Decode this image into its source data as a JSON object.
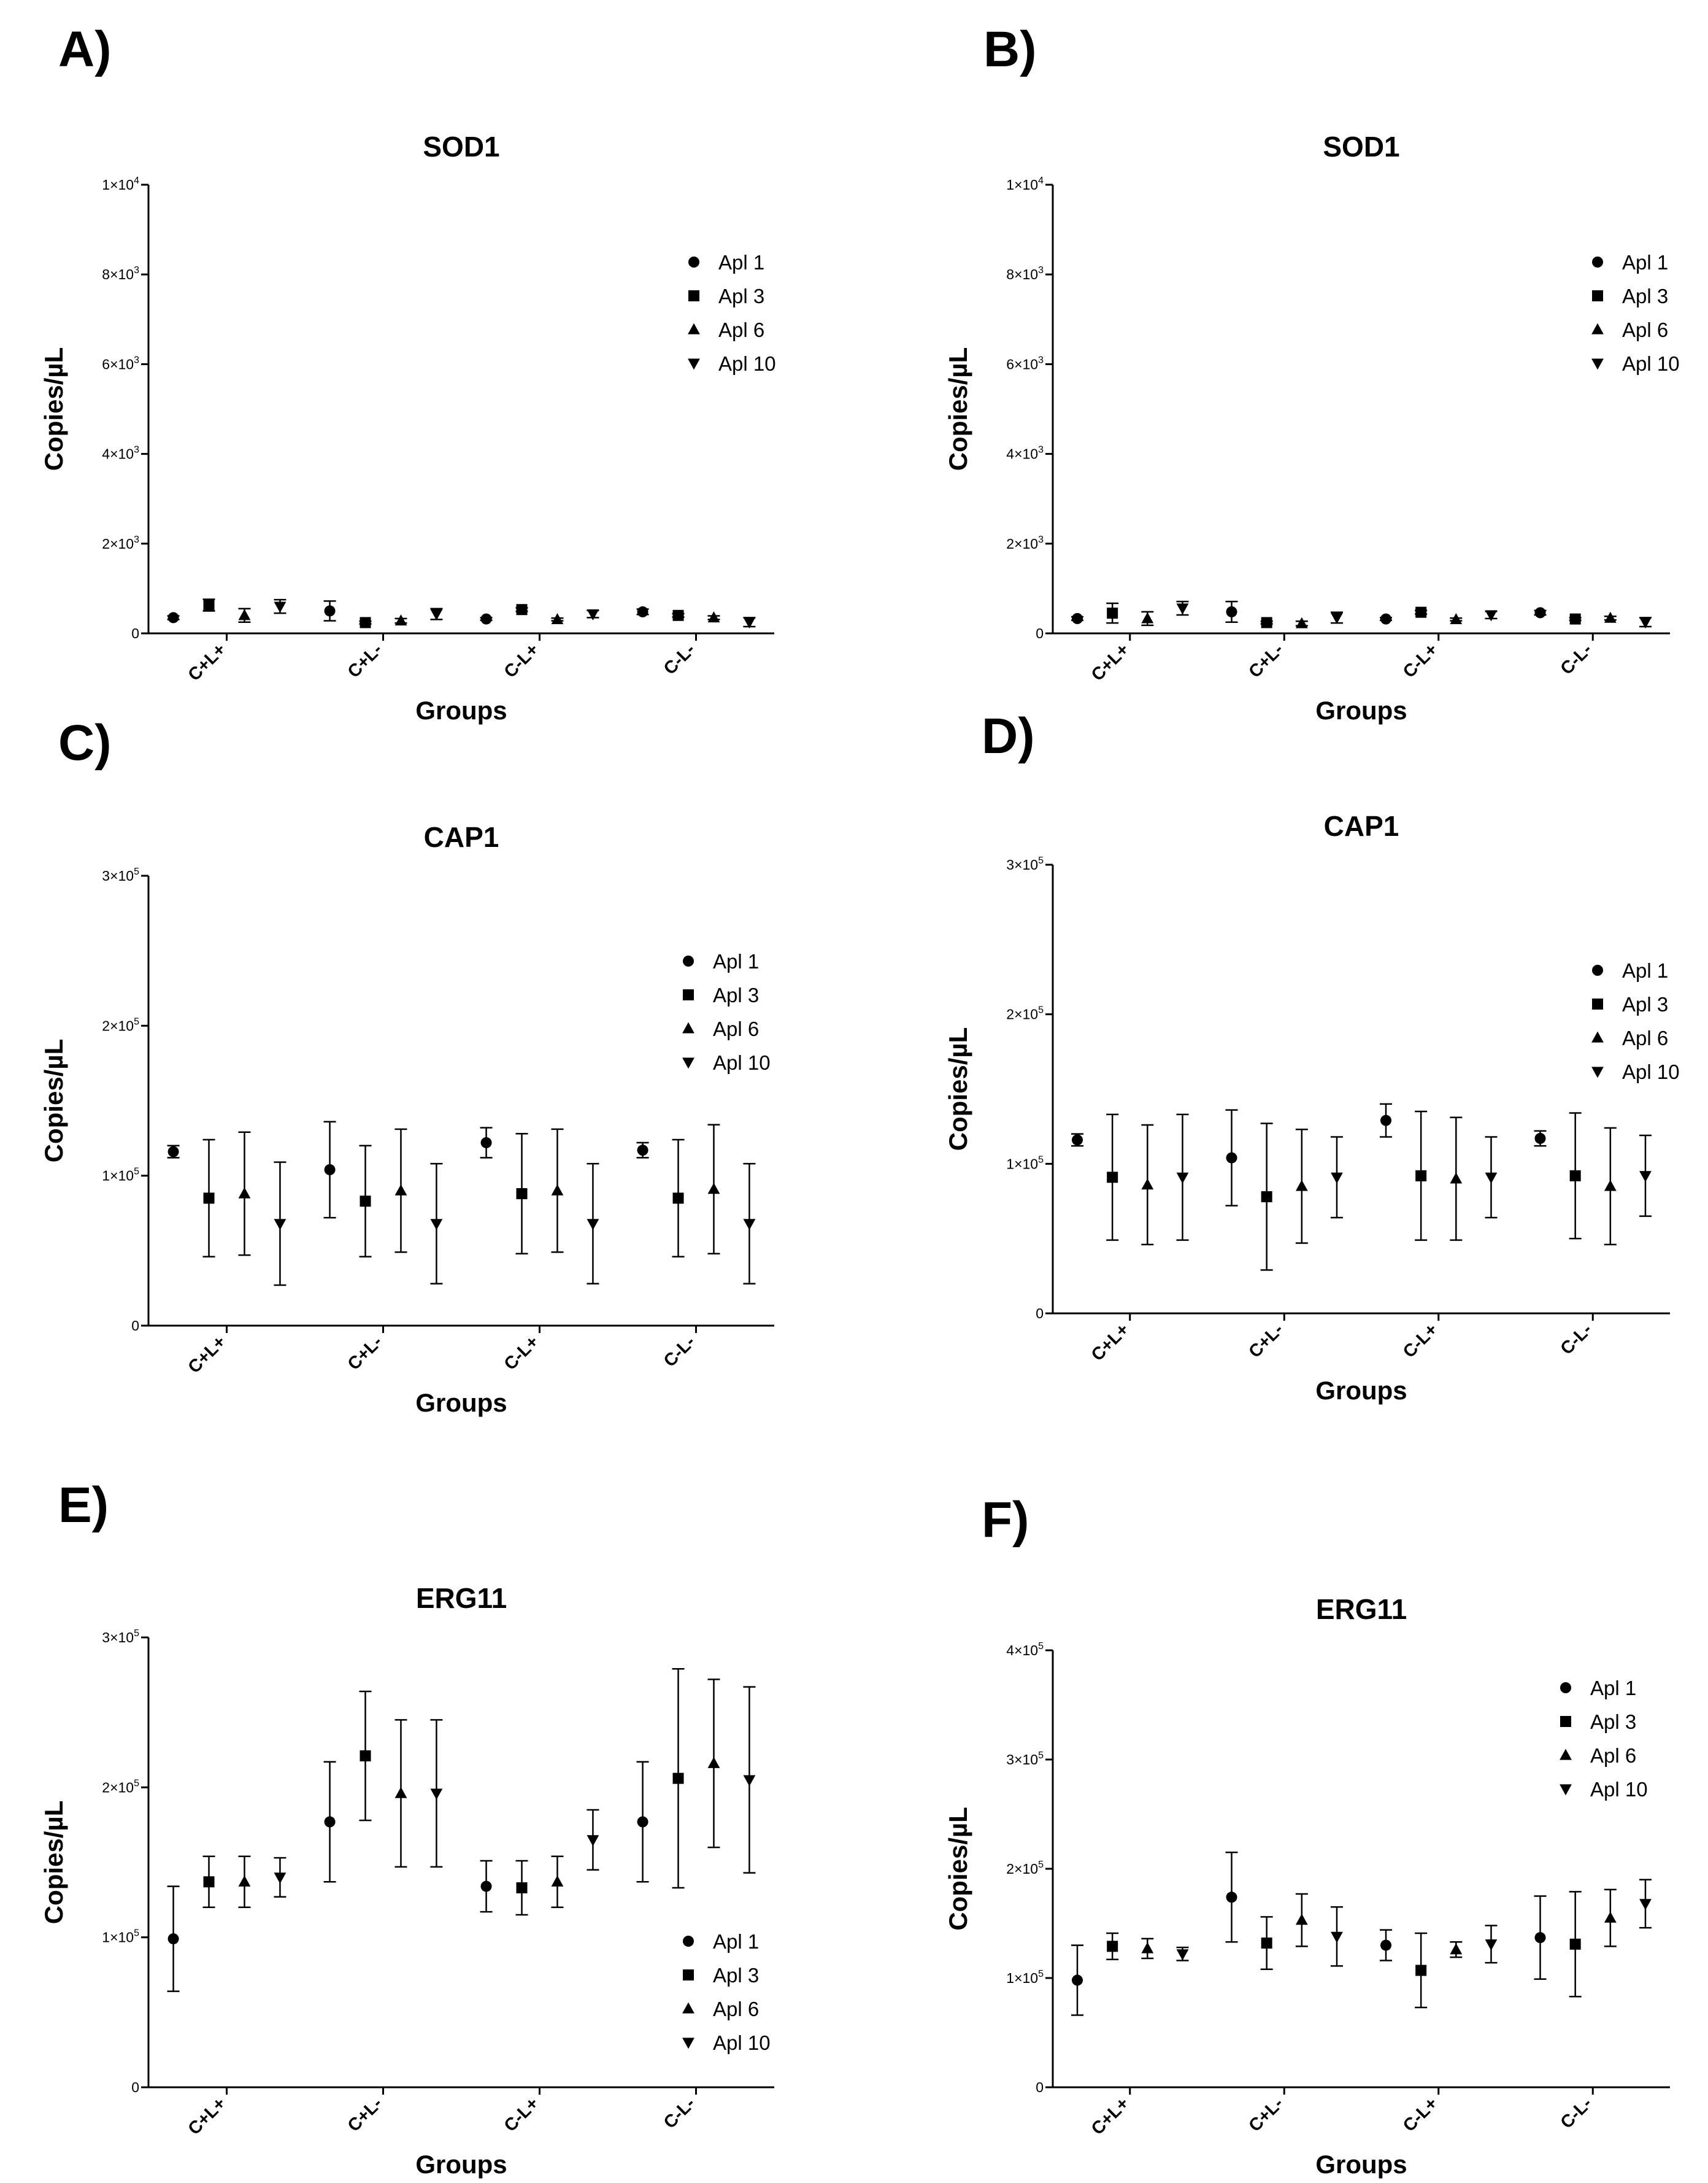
{
  "figure": {
    "x_axis_label": "Groups",
    "y_axis_label": "Copies/µL",
    "series_names": [
      "Apl 1",
      "Apl 3",
      "Apl 6",
      "Apl 10"
    ],
    "marker_shapes": [
      "circle",
      "square",
      "triangle-up",
      "triangle-down"
    ],
    "marker_color": "#000000",
    "background": "#ffffff"
  },
  "chart_data": [
    {
      "panel": "A)",
      "type": "scatter",
      "title": "SOD1",
      "xlabel": "Groups",
      "ylabel": "Copies/µL",
      "categories": [
        "C+L+",
        "C+L-",
        "C-L+",
        "C-L-"
      ],
      "ylim": [
        0,
        10000
      ],
      "yticks": [
        {
          "value": 0,
          "mantissa": "0",
          "exp": ""
        },
        {
          "value": 2000,
          "mantissa": "2×10",
          "exp": "3"
        },
        {
          "value": 4000,
          "mantissa": "4×10",
          "exp": "3"
        },
        {
          "value": 6000,
          "mantissa": "6×10",
          "exp": "3"
        },
        {
          "value": 8000,
          "mantissa": "8×10",
          "exp": "3"
        },
        {
          "value": 10000,
          "mantissa": "1×10",
          "exp": "4"
        }
      ],
      "legend": "top-right",
      "series": [
        {
          "name": "Apl 1",
          "values": [
            350,
            500,
            320,
            480
          ],
          "errors": [
            40,
            220,
            30,
            60
          ]
        },
        {
          "name": "Apl 3",
          "values": [
            630,
            240,
            530,
            400
          ],
          "errors": [
            130,
            30,
            40,
            40
          ]
        },
        {
          "name": "Apl 6",
          "values": [
            400,
            280,
            310,
            350
          ],
          "errors": [
            150,
            50,
            30,
            40
          ]
        },
        {
          "name": "Apl 10",
          "values": [
            600,
            430,
            430,
            250
          ],
          "errors": [
            150,
            120,
            80,
            100
          ]
        }
      ]
    },
    {
      "panel": "B)",
      "type": "scatter",
      "title": "SOD1",
      "xlabel": "Groups",
      "ylabel": "Copies/µL",
      "categories": [
        "C+L+",
        "C+L-",
        "C-L+",
        "C-L-"
      ],
      "ylim": [
        0,
        10000
      ],
      "yticks": [
        {
          "value": 0,
          "mantissa": "0",
          "exp": ""
        },
        {
          "value": 2000,
          "mantissa": "2×10",
          "exp": "3"
        },
        {
          "value": 4000,
          "mantissa": "4×10",
          "exp": "3"
        },
        {
          "value": 6000,
          "mantissa": "6×10",
          "exp": "3"
        },
        {
          "value": 8000,
          "mantissa": "8×10",
          "exp": "3"
        },
        {
          "value": 10000,
          "mantissa": "1×10",
          "exp": "4"
        }
      ],
      "legend": "top-right",
      "series": [
        {
          "name": "Apl 1",
          "values": [
            330,
            480,
            320,
            460
          ],
          "errors": [
            40,
            230,
            30,
            50
          ]
        },
        {
          "name": "Apl 3",
          "values": [
            450,
            240,
            470,
            320
          ],
          "errors": [
            220,
            30,
            40,
            30
          ]
        },
        {
          "name": "Apl 6",
          "values": [
            330,
            220,
            310,
            340
          ],
          "errors": [
            150,
            50,
            30,
            40
          ]
        },
        {
          "name": "Apl 10",
          "values": [
            560,
            350,
            410,
            250
          ],
          "errors": [
            150,
            120,
            80,
            100
          ]
        }
      ]
    },
    {
      "panel": "C)",
      "type": "scatter",
      "title": "CAP1",
      "xlabel": "Groups",
      "ylabel": "Copies/µL",
      "categories": [
        "C+L+",
        "C+L-",
        "C-L+",
        "C-L-"
      ],
      "ylim": [
        0,
        300000
      ],
      "yticks": [
        {
          "value": 0,
          "mantissa": "0",
          "exp": ""
        },
        {
          "value": 100000,
          "mantissa": "1×10",
          "exp": "5"
        },
        {
          "value": 200000,
          "mantissa": "2×10",
          "exp": "5"
        },
        {
          "value": 300000,
          "mantissa": "3×10",
          "exp": "5"
        }
      ],
      "legend": "top-right",
      "series": [
        {
          "name": "Apl 1",
          "values": [
            116000,
            104000,
            122000,
            117000
          ],
          "errors": [
            4000,
            32000,
            10000,
            5000
          ]
        },
        {
          "name": "Apl 3",
          "values": [
            85000,
            83000,
            88000,
            85000
          ],
          "errors": [
            39000,
            37000,
            40000,
            39000
          ]
        },
        {
          "name": "Apl 6",
          "values": [
            88000,
            90000,
            90000,
            91000
          ],
          "errors": [
            41000,
            41000,
            41000,
            43000
          ]
        },
        {
          "name": "Apl 10",
          "values": [
            68000,
            68000,
            68000,
            68000
          ],
          "errors": [
            41000,
            40000,
            40000,
            40000
          ]
        }
      ]
    },
    {
      "panel": "D)",
      "type": "scatter",
      "title": "CAP1",
      "xlabel": "Groups",
      "ylabel": "Copies/µL",
      "categories": [
        "C+L+",
        "C+L-",
        "C-L+",
        "C-L-"
      ],
      "ylim": [
        0,
        300000
      ],
      "yticks": [
        {
          "value": 0,
          "mantissa": "0",
          "exp": ""
        },
        {
          "value": 100000,
          "mantissa": "1×10",
          "exp": "5"
        },
        {
          "value": 200000,
          "mantissa": "2×10",
          "exp": "5"
        },
        {
          "value": 300000,
          "mantissa": "3×10",
          "exp": "5"
        }
      ],
      "legend": "top-right",
      "series": [
        {
          "name": "Apl 1",
          "values": [
            116000,
            104000,
            129000,
            117000
          ],
          "errors": [
            4000,
            32000,
            11000,
            5000
          ]
        },
        {
          "name": "Apl 3",
          "values": [
            91000,
            78000,
            92000,
            92000
          ],
          "errors": [
            42000,
            49000,
            43000,
            42000
          ]
        },
        {
          "name": "Apl 6",
          "values": [
            86000,
            85000,
            90000,
            85000
          ],
          "errors": [
            40000,
            38000,
            41000,
            39000
          ]
        },
        {
          "name": "Apl 10",
          "values": [
            91000,
            91000,
            91000,
            92000
          ],
          "errors": [
            42000,
            27000,
            27000,
            27000
          ]
        }
      ]
    },
    {
      "panel": "E)",
      "type": "scatter",
      "title": "ERG11",
      "xlabel": "Groups",
      "ylabel": "Copies/µL",
      "categories": [
        "C+L+",
        "C+L-",
        "C-L+",
        "C-L-"
      ],
      "ylim": [
        0,
        300000
      ],
      "yticks": [
        {
          "value": 0,
          "mantissa": "0",
          "exp": ""
        },
        {
          "value": 100000,
          "mantissa": "1×10",
          "exp": "5"
        },
        {
          "value": 200000,
          "mantissa": "2×10",
          "exp": "5"
        },
        {
          "value": 300000,
          "mantissa": "3×10",
          "exp": "5"
        }
      ],
      "legend": "bottom-right",
      "series": [
        {
          "name": "Apl 1",
          "values": [
            99000,
            177000,
            134000,
            177000
          ],
          "errors": [
            35000,
            40000,
            17000,
            40000
          ]
        },
        {
          "name": "Apl 3",
          "values": [
            137000,
            221000,
            133000,
            206000
          ],
          "errors": [
            17000,
            43000,
            18000,
            73000
          ]
        },
        {
          "name": "Apl 6",
          "values": [
            137000,
            196000,
            137000,
            216000
          ],
          "errors": [
            17000,
            49000,
            17000,
            56000
          ]
        },
        {
          "name": "Apl 10",
          "values": [
            140000,
            196000,
            165000,
            205000
          ],
          "errors": [
            13000,
            49000,
            20000,
            62000
          ]
        }
      ]
    },
    {
      "panel": "F)",
      "type": "scatter",
      "title": "ERG11",
      "xlabel": "Groups",
      "ylabel": "Copies/µL",
      "categories": [
        "C+L+",
        "C+L-",
        "C-L+",
        "C-L-"
      ],
      "ylim": [
        0,
        400000
      ],
      "yticks": [
        {
          "value": 0,
          "mantissa": "0",
          "exp": ""
        },
        {
          "value": 100000,
          "mantissa": "1×10",
          "exp": "5"
        },
        {
          "value": 200000,
          "mantissa": "2×10",
          "exp": "5"
        },
        {
          "value": 300000,
          "mantissa": "3×10",
          "exp": "5"
        },
        {
          "value": 400000,
          "mantissa": "4×10",
          "exp": "5"
        }
      ],
      "legend": "top-right",
      "series": [
        {
          "name": "Apl 1",
          "values": [
            98000,
            174000,
            130000,
            137000
          ],
          "errors": [
            32000,
            41000,
            14000,
            38000
          ]
        },
        {
          "name": "Apl 3",
          "values": [
            129000,
            132000,
            107000,
            131000
          ],
          "errors": [
            12000,
            24000,
            34000,
            48000
          ]
        },
        {
          "name": "Apl 6",
          "values": [
            127000,
            153000,
            126000,
            155000
          ],
          "errors": [
            9000,
            24000,
            7000,
            26000
          ]
        },
        {
          "name": "Apl 10",
          "values": [
            122000,
            138000,
            131000,
            168000
          ],
          "errors": [
            6000,
            27000,
            17000,
            22000
          ]
        }
      ]
    }
  ]
}
